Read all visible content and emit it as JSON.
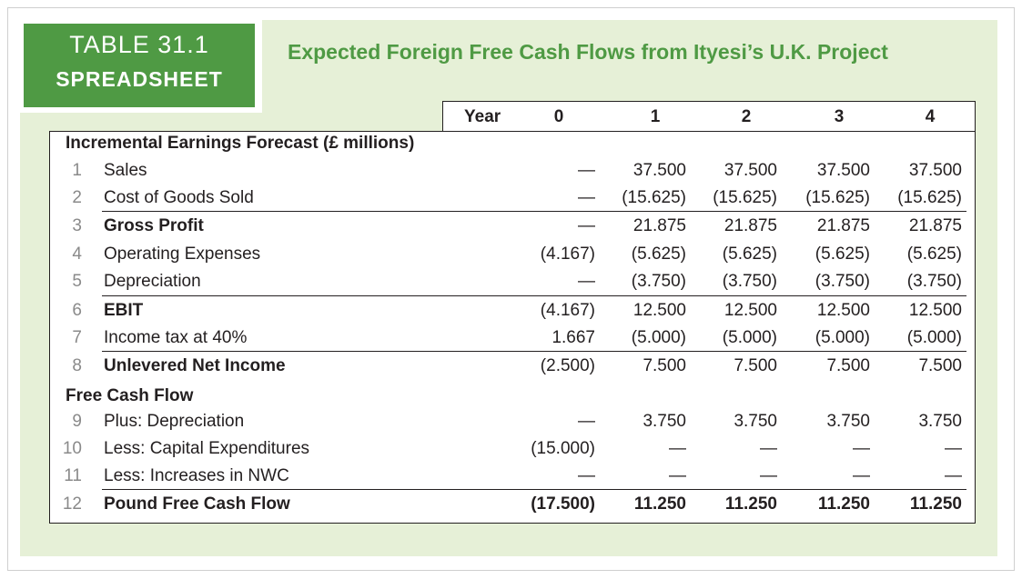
{
  "badge": {
    "line1": "TABLE 31.1",
    "line2": "SPREADSHEET"
  },
  "title": "Expected Foreign Free Cash Flows from Ityesi’s U.K. Project",
  "header": {
    "year_label": "Year",
    "years": [
      "0",
      "1",
      "2",
      "3",
      "4"
    ]
  },
  "sections": {
    "incremental": "Incremental Earnings Forecast (£ millions)",
    "fcf": "Free Cash Flow"
  },
  "rows": [
    {
      "num": "1",
      "label": "Sales",
      "bold": false,
      "values": [
        "—",
        "37.500",
        "37.500",
        "37.500",
        "37.500"
      ]
    },
    {
      "num": "2",
      "label": "Cost of Goods Sold",
      "bold": false,
      "values": [
        "—",
        "(15.625)",
        "(15.625)",
        "(15.625)",
        "(15.625)"
      ]
    },
    {
      "num": "3",
      "label": "Gross Profit",
      "bold": true,
      "values": [
        "—",
        "21.875",
        "21.875",
        "21.875",
        "21.875"
      ]
    },
    {
      "num": "4",
      "label": "Operating Expenses",
      "bold": false,
      "values": [
        "(4.167)",
        "(5.625)",
        "(5.625)",
        "(5.625)",
        "(5.625)"
      ]
    },
    {
      "num": "5",
      "label": "Depreciation",
      "bold": false,
      "values": [
        "—",
        "(3.750)",
        "(3.750)",
        "(3.750)",
        "(3.750)"
      ]
    },
    {
      "num": "6",
      "label": "EBIT",
      "bold": true,
      "values": [
        "(4.167)",
        "12.500",
        "12.500",
        "12.500",
        "12.500"
      ]
    },
    {
      "num": "7",
      "label": "Income tax at 40%",
      "bold": false,
      "values": [
        "1.667",
        "(5.000)",
        "(5.000)",
        "(5.000)",
        "(5.000)"
      ]
    },
    {
      "num": "8",
      "label": "Unlevered Net Income",
      "bold": true,
      "values": [
        "(2.500)",
        "7.500",
        "7.500",
        "7.500",
        "7.500"
      ]
    },
    {
      "num": "9",
      "label": "Plus: Depreciation",
      "bold": false,
      "values": [
        "—",
        "3.750",
        "3.750",
        "3.750",
        "3.750"
      ]
    },
    {
      "num": "10",
      "label": "Less: Capital Expenditures",
      "bold": false,
      "values": [
        "(15.000)",
        "—",
        "—",
        "—",
        "—"
      ]
    },
    {
      "num": "11",
      "label": "Less: Increases in NWC",
      "bold": false,
      "values": [
        "—",
        "—",
        "—",
        "—",
        "—"
      ]
    },
    {
      "num": "12",
      "label": "Pound Free Cash Flow",
      "bold": true,
      "values": [
        "(17.500)",
        "11.250",
        "11.250",
        "11.250",
        "11.250"
      ]
    }
  ],
  "colors": {
    "accent": "#4f9a44",
    "panel": "#e6f0d7"
  }
}
